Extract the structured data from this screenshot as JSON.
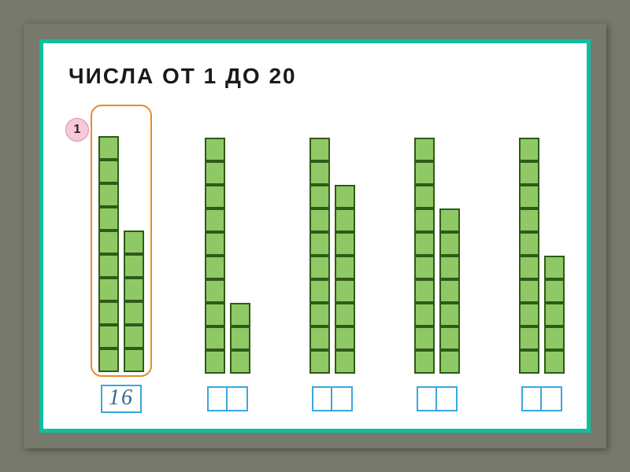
{
  "title": "ЧИСЛА ОТ 1 ДО 20",
  "problem_number": "1",
  "block_color": "#8fc966",
  "block_border": "#2f5a17",
  "highlight_border": "#e98a2a",
  "card_border": "#0fbf9f",
  "badge_bg": "#f7c9d9",
  "answer_box_border": "#3aa7e0",
  "background": "#77796c",
  "groups": [
    {
      "tens": 10,
      "ones": 6,
      "answer": "16",
      "highlighted": true
    },
    {
      "tens": 10,
      "ones": 3,
      "answer": "",
      "highlighted": false
    },
    {
      "tens": 10,
      "ones": 8,
      "answer": "",
      "highlighted": false
    },
    {
      "tens": 10,
      "ones": 7,
      "answer": "",
      "highlighted": false
    },
    {
      "tens": 10,
      "ones": 5,
      "answer": "",
      "highlighted": false
    }
  ]
}
